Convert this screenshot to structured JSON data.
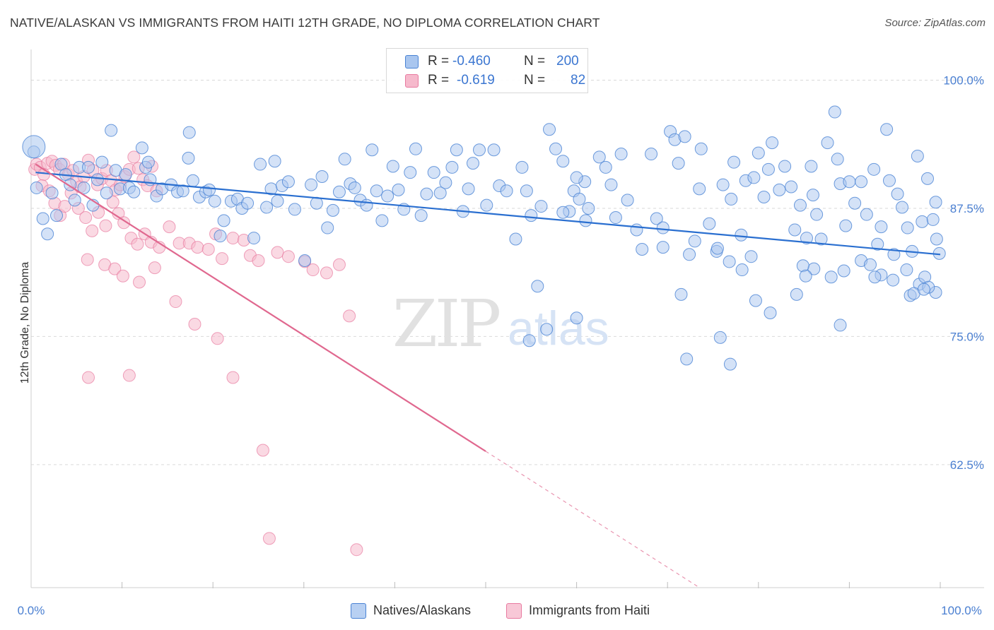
{
  "title": "NATIVE/ALASKAN VS IMMIGRANTS FROM HAITI 12TH GRADE, NO DIPLOMA CORRELATION CHART",
  "source": "Source: ZipAtlas.com",
  "watermark": {
    "zip": "ZIP",
    "atlas": "atlas"
  },
  "colors": {
    "blue_fill": "#a9c6ef",
    "blue_stroke": "#4a83d4",
    "blue_line": "#2a6fd0",
    "pink_fill": "#f6b9cc",
    "pink_stroke": "#e87aa0",
    "pink_line": "#e0688f",
    "tick_text": "#4a7fd1",
    "grid": "#d9d9d9"
  },
  "legend_top": {
    "rows": [
      {
        "r_label": "R =",
        "r_value": "-0.460",
        "n_label": "N =",
        "n_value": "200",
        "color": "blue"
      },
      {
        "r_label": "R =",
        "r_value": "-0.619",
        "n_label": "N =",
        "n_value": "82",
        "color": "pink"
      }
    ]
  },
  "legend_bottom": [
    {
      "label": "Natives/Alaskans",
      "color": "blue"
    },
    {
      "label": "Immigrants from Haiti",
      "color": "pink"
    }
  ],
  "chart_data": {
    "type": "scatter",
    "ylabel": "12th Grade, No Diploma",
    "xlabel": "",
    "xlim": [
      0,
      100
    ],
    "ylim": [
      50.5,
      103
    ],
    "x_tick_labels": [
      "0.0%",
      "100.0%"
    ],
    "y_ticks": [
      {
        "value": 100.0,
        "label": "100.0%"
      },
      {
        "value": 87.5,
        "label": "87.5%"
      },
      {
        "value": 75.0,
        "label": "75.0%"
      },
      {
        "value": 62.5,
        "label": "62.5%"
      }
    ],
    "grid": "horizontal dashed",
    "series": [
      {
        "name": "Natives/Alaskans",
        "color": "#a9c6ef",
        "trend": {
          "x": [
            0.5,
            100.0
          ],
          "y": [
            91.0,
            83.0
          ]
        },
        "points": [
          [
            0.3,
            93.0
          ],
          [
            0.6,
            89.5
          ],
          [
            1.3,
            86.5
          ],
          [
            1.8,
            85.0
          ],
          [
            2.3,
            89.0
          ],
          [
            2.8,
            86.8
          ],
          [
            3.3,
            91.8
          ],
          [
            3.8,
            90.8
          ],
          [
            4.3,
            89.8
          ],
          [
            4.8,
            88.3
          ],
          [
            5.3,
            91.5
          ],
          [
            5.8,
            89.5
          ],
          [
            6.3,
            91.5
          ],
          [
            6.8,
            87.8
          ],
          [
            7.3,
            90.3
          ],
          [
            7.8,
            92.0
          ],
          [
            8.3,
            89.0
          ],
          [
            8.8,
            95.1
          ],
          [
            9.3,
            91.2
          ],
          [
            9.8,
            89.4
          ],
          [
            10.4,
            90.8
          ],
          [
            10.8,
            89.5
          ],
          [
            11.3,
            89.1
          ],
          [
            12.2,
            93.4
          ],
          [
            12.6,
            91.5
          ],
          [
            13.1,
            90.3
          ],
          [
            13.8,
            88.7
          ],
          [
            14.4,
            89.4
          ],
          [
            15.4,
            89.8
          ],
          [
            16.1,
            89.1
          ],
          [
            16.7,
            89.2
          ],
          [
            17.3,
            92.4
          ],
          [
            17.8,
            90.2
          ],
          [
            18.5,
            88.6
          ],
          [
            19.2,
            89.1
          ],
          [
            19.6,
            89.3
          ],
          [
            20.2,
            88.2
          ],
          [
            20.8,
            84.8
          ],
          [
            21.2,
            86.3
          ],
          [
            22.0,
            88.2
          ],
          [
            22.7,
            88.4
          ],
          [
            23.2,
            87.5
          ],
          [
            23.8,
            88.0
          ],
          [
            24.5,
            84.6
          ],
          [
            25.2,
            91.8
          ],
          [
            25.9,
            87.6
          ],
          [
            26.4,
            89.4
          ],
          [
            27.1,
            88.2
          ],
          [
            27.6,
            89.7
          ],
          [
            28.3,
            90.1
          ],
          [
            29.0,
            87.4
          ],
          [
            30.1,
            82.4
          ],
          [
            30.8,
            89.8
          ],
          [
            31.4,
            88.0
          ],
          [
            32.0,
            90.6
          ],
          [
            32.6,
            85.6
          ],
          [
            33.2,
            87.3
          ],
          [
            33.9,
            89.1
          ],
          [
            34.5,
            92.3
          ],
          [
            35.1,
            89.9
          ],
          [
            35.6,
            89.5
          ],
          [
            36.2,
            88.3
          ],
          [
            36.9,
            87.8
          ],
          [
            37.5,
            93.2
          ],
          [
            38.0,
            89.2
          ],
          [
            38.6,
            86.3
          ],
          [
            39.2,
            88.7
          ],
          [
            39.8,
            91.6
          ],
          [
            40.4,
            89.3
          ],
          [
            41.0,
            87.4
          ],
          [
            41.7,
            91.0
          ],
          [
            42.3,
            93.3
          ],
          [
            42.9,
            86.8
          ],
          [
            43.5,
            88.9
          ],
          [
            44.3,
            91.0
          ],
          [
            45.0,
            89.0
          ],
          [
            45.6,
            90.0
          ],
          [
            46.3,
            91.5
          ],
          [
            46.8,
            93.2
          ],
          [
            47.5,
            87.2
          ],
          [
            48.1,
            89.4
          ],
          [
            48.6,
            91.9
          ],
          [
            49.3,
            93.2
          ],
          [
            50.1,
            87.8
          ],
          [
            50.9,
            93.2
          ],
          [
            51.5,
            89.7
          ],
          [
            52.3,
            89.2
          ],
          [
            53.3,
            84.5
          ],
          [
            54.0,
            91.5
          ],
          [
            54.5,
            89.2
          ],
          [
            55.0,
            86.8
          ],
          [
            56.1,
            87.7
          ],
          [
            57.0,
            95.2
          ],
          [
            57.7,
            93.3
          ],
          [
            58.5,
            92.1
          ],
          [
            59.2,
            87.2
          ],
          [
            59.7,
            89.2
          ],
          [
            60.3,
            88.4
          ],
          [
            60.9,
            90.1
          ],
          [
            61.3,
            87.5
          ],
          [
            62.5,
            92.5
          ],
          [
            63.2,
            91.5
          ],
          [
            64.3,
            86.6
          ],
          [
            64.9,
            92.8
          ],
          [
            65.6,
            88.3
          ],
          [
            66.6,
            85.4
          ],
          [
            67.2,
            83.5
          ],
          [
            68.2,
            92.8
          ],
          [
            68.8,
            86.5
          ],
          [
            69.5,
            85.6
          ],
          [
            70.3,
            95.0
          ],
          [
            70.8,
            94.2
          ],
          [
            71.2,
            91.9
          ],
          [
            71.9,
            94.5
          ],
          [
            72.4,
            83.0
          ],
          [
            73.0,
            84.3
          ],
          [
            73.5,
            89.4
          ],
          [
            74.6,
            86.0
          ],
          [
            75.4,
            83.3
          ],
          [
            76.1,
            89.8
          ],
          [
            76.8,
            82.3
          ],
          [
            77.3,
            92.0
          ],
          [
            78.1,
            84.9
          ],
          [
            78.6,
            90.2
          ],
          [
            79.2,
            82.8
          ],
          [
            80.0,
            92.9
          ],
          [
            80.6,
            88.6
          ],
          [
            81.1,
            91.3
          ],
          [
            81.5,
            93.9
          ],
          [
            82.3,
            89.3
          ],
          [
            82.9,
            91.6
          ],
          [
            83.6,
            89.6
          ],
          [
            84.0,
            85.4
          ],
          [
            84.6,
            87.8
          ],
          [
            85.3,
            84.6
          ],
          [
            86.0,
            88.8
          ],
          [
            86.4,
            86.9
          ],
          [
            86.9,
            84.5
          ],
          [
            87.6,
            93.9
          ],
          [
            88.4,
            96.9
          ],
          [
            88.7,
            92.3
          ],
          [
            89.0,
            89.9
          ],
          [
            89.6,
            85.8
          ],
          [
            90.0,
            90.1
          ],
          [
            90.6,
            88.0
          ],
          [
            91.3,
            90.1
          ],
          [
            91.9,
            86.9
          ],
          [
            92.7,
            91.3
          ],
          [
            93.1,
            84.0
          ],
          [
            93.5,
            85.7
          ],
          [
            94.1,
            95.2
          ],
          [
            94.4,
            90.2
          ],
          [
            94.9,
            83.0
          ],
          [
            95.3,
            88.9
          ],
          [
            95.8,
            87.6
          ],
          [
            96.4,
            85.6
          ],
          [
            96.9,
            83.3
          ],
          [
            97.5,
            92.6
          ],
          [
            98.0,
            86.2
          ],
          [
            98.6,
            90.4
          ],
          [
            99.2,
            86.4
          ],
          [
            99.6,
            84.5
          ],
          [
            99.9,
            83.1
          ],
          [
            99.5,
            88.1
          ],
          [
            12.9,
            92.0
          ],
          [
            17.4,
            94.9
          ],
          [
            26.8,
            92.1
          ],
          [
            58.5,
            87.1
          ],
          [
            60.0,
            90.5
          ],
          [
            63.8,
            89.8
          ],
          [
            73.7,
            93.3
          ],
          [
            85.8,
            91.6
          ],
          [
            55.7,
            79.9
          ],
          [
            84.2,
            79.1
          ],
          [
            93.5,
            81.0
          ],
          [
            96.3,
            81.5
          ],
          [
            88.0,
            80.8
          ],
          [
            69.5,
            83.7
          ],
          [
            71.5,
            79.1
          ],
          [
            75.5,
            83.6
          ],
          [
            78.2,
            81.5
          ],
          [
            86.1,
            81.6
          ],
          [
            89.4,
            81.4
          ],
          [
            91.3,
            82.4
          ],
          [
            92.3,
            82.0
          ],
          [
            92.8,
            80.8
          ],
          [
            94.8,
            80.5
          ],
          [
            96.7,
            79.0
          ],
          [
            97.7,
            80.1
          ],
          [
            98.3,
            80.8
          ],
          [
            99.5,
            79.3
          ],
          [
            98.7,
            79.8
          ],
          [
            79.5,
            90.5
          ],
          [
            84.9,
            81.9
          ],
          [
            85.2,
            80.9
          ],
          [
            79.7,
            78.5
          ],
          [
            81.3,
            77.3
          ],
          [
            89.0,
            76.1
          ],
          [
            97.1,
            79.2
          ],
          [
            98.2,
            79.6
          ],
          [
            75.8,
            74.9
          ],
          [
            72.1,
            72.8
          ],
          [
            76.9,
            72.3
          ],
          [
            60.0,
            76.8
          ],
          [
            54.8,
            74.6
          ],
          [
            56.7,
            75.7
          ],
          [
            61.0,
            86.3
          ],
          [
            77.0,
            88.4
          ]
        ]
      },
      {
        "name": "Immigrants from Haiti",
        "color": "#f6b9cc",
        "trend": {
          "x": [
            0.5,
            50.0
          ],
          "y": [
            91.8,
            63.8
          ]
        },
        "points": [
          [
            0.4,
            91.3
          ],
          [
            0.6,
            91.8
          ],
          [
            1.0,
            91.5
          ],
          [
            1.4,
            90.8
          ],
          [
            1.8,
            91.9
          ],
          [
            2.3,
            92.1
          ],
          [
            2.7,
            91.7
          ],
          [
            3.1,
            91.3
          ],
          [
            3.6,
            91.8
          ],
          [
            4.1,
            90.8
          ],
          [
            4.6,
            91.2
          ],
          [
            5.0,
            90.1
          ],
          [
            5.4,
            89.6
          ],
          [
            5.8,
            90.6
          ],
          [
            6.3,
            92.2
          ],
          [
            6.8,
            91.2
          ],
          [
            7.3,
            89.8
          ],
          [
            7.8,
            90.4
          ],
          [
            8.3,
            91.2
          ],
          [
            8.8,
            90.2
          ],
          [
            9.3,
            89.3
          ],
          [
            9.8,
            89.8
          ],
          [
            10.3,
            90.6
          ],
          [
            10.8,
            91.3
          ],
          [
            11.3,
            92.5
          ],
          [
            11.8,
            91.4
          ],
          [
            12.3,
            90.3
          ],
          [
            12.8,
            89.7
          ],
          [
            13.3,
            91.6
          ],
          [
            13.8,
            89.2
          ],
          [
            1.2,
            89.7
          ],
          [
            2.0,
            89.2
          ],
          [
            2.6,
            88.0
          ],
          [
            3.2,
            86.8
          ],
          [
            3.7,
            87.7
          ],
          [
            4.4,
            89.0
          ],
          [
            5.2,
            87.5
          ],
          [
            6.0,
            86.6
          ],
          [
            6.7,
            85.3
          ],
          [
            7.4,
            87.1
          ],
          [
            8.2,
            85.8
          ],
          [
            9.0,
            88.1
          ],
          [
            9.6,
            87.0
          ],
          [
            10.2,
            86.1
          ],
          [
            11.0,
            84.6
          ],
          [
            11.7,
            84.0
          ],
          [
            12.5,
            85.0
          ],
          [
            13.2,
            84.2
          ],
          [
            14.1,
            83.7
          ],
          [
            15.2,
            85.7
          ],
          [
            16.3,
            84.1
          ],
          [
            17.4,
            84.1
          ],
          [
            18.3,
            83.7
          ],
          [
            19.5,
            83.5
          ],
          [
            20.3,
            85.0
          ],
          [
            21.0,
            82.6
          ],
          [
            22.2,
            84.6
          ],
          [
            23.4,
            84.4
          ],
          [
            24.1,
            82.9
          ],
          [
            25.0,
            82.4
          ],
          [
            27.1,
            83.2
          ],
          [
            28.3,
            82.8
          ],
          [
            30.1,
            82.3
          ],
          [
            31.0,
            81.5
          ],
          [
            32.5,
            81.2
          ],
          [
            33.9,
            82.0
          ],
          [
            35.0,
            77.0
          ],
          [
            6.2,
            82.5
          ],
          [
            8.1,
            82.0
          ],
          [
            9.2,
            81.6
          ],
          [
            10.1,
            80.9
          ],
          [
            11.9,
            80.3
          ],
          [
            13.6,
            81.7
          ],
          [
            15.9,
            78.4
          ],
          [
            18.0,
            76.2
          ],
          [
            20.5,
            74.8
          ],
          [
            6.3,
            71.0
          ],
          [
            10.8,
            71.2
          ],
          [
            22.2,
            71.0
          ],
          [
            25.5,
            63.9
          ],
          [
            26.2,
            55.3
          ],
          [
            35.8,
            54.2
          ]
        ]
      }
    ]
  }
}
